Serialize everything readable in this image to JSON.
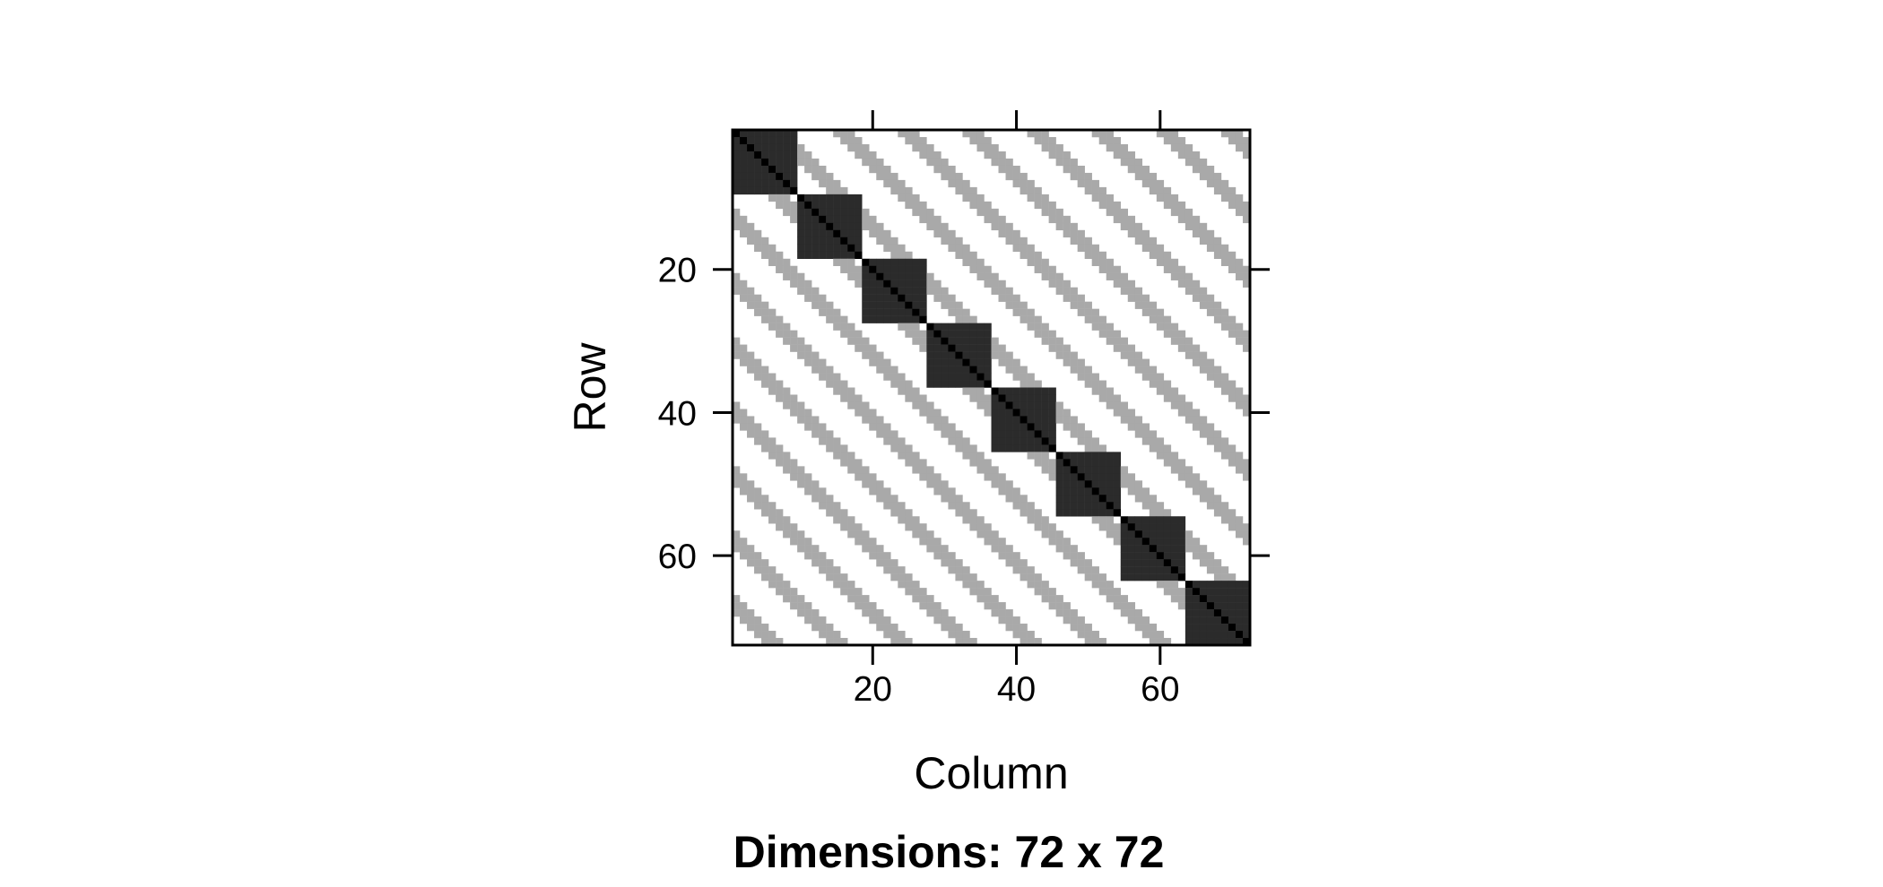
{
  "chart_data": {
    "type": "heatmap",
    "description_kind": "sparse matrix image (block-circulant correlation pattern)",
    "nrow": 72,
    "ncol": 72,
    "block_size": 9,
    "n_blocks": 8,
    "value_levels": {
      "diagonal": 1.0,
      "within_block": 0.9,
      "between_block_pattern": 0.35,
      "zero": 0
    },
    "between_block_rule": "(row - col) mod 9 in {2, 3, 4}",
    "colors": {
      "diagonal": "#000000",
      "within_block": "#2b2b2b",
      "between_block_pattern": "#a9a9a9",
      "zero": "#ffffff",
      "axis": "#000000"
    },
    "xlabel": "Column",
    "ylabel": "Row",
    "x_ticks": [
      20,
      40,
      60
    ],
    "y_ticks": [
      20,
      40,
      60
    ],
    "x_range": [
      0.5,
      72.5
    ],
    "y_range": [
      0.5,
      72.5
    ],
    "y_axis_direction": "top-to-bottom",
    "caption": "Dimensions: 72 x 72"
  }
}
